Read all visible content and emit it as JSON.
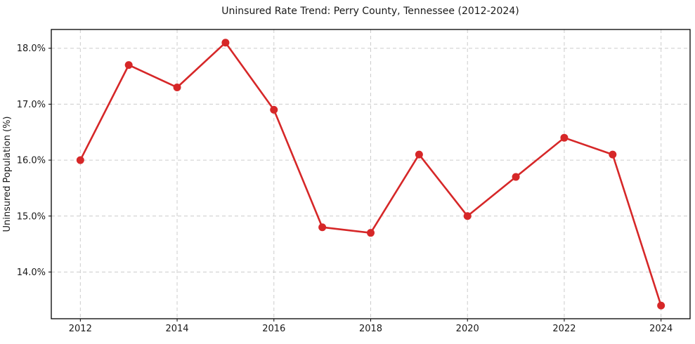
{
  "chart_data": {
    "type": "line",
    "title": "Uninsured Rate Trend: Perry County, Tennessee (2012-2024)",
    "xlabel": "",
    "ylabel": "Uninsured Population (%)",
    "x": [
      2012,
      2013,
      2014,
      2015,
      2016,
      2017,
      2018,
      2019,
      2020,
      2021,
      2022,
      2023,
      2024
    ],
    "values": [
      16.0,
      17.7,
      17.3,
      18.1,
      16.9,
      14.8,
      14.7,
      16.1,
      15.0,
      15.7,
      16.4,
      16.1,
      13.4
    ],
    "xlim": [
      2011.4,
      2024.6
    ],
    "ylim": [
      13.165,
      18.335
    ],
    "xticks": [
      2012,
      2014,
      2016,
      2018,
      2020,
      2022,
      2024
    ],
    "yticks": [
      14.0,
      15.0,
      16.0,
      17.0,
      18.0
    ],
    "ytick_suffix": "%",
    "grid": "dashed",
    "legend": "none",
    "colors": {
      "line": "#d62728",
      "marker": "#d62728",
      "grid": "#cccccc",
      "axis": "#000000",
      "text": "#1a1a1a",
      "background": "#ffffff"
    }
  }
}
